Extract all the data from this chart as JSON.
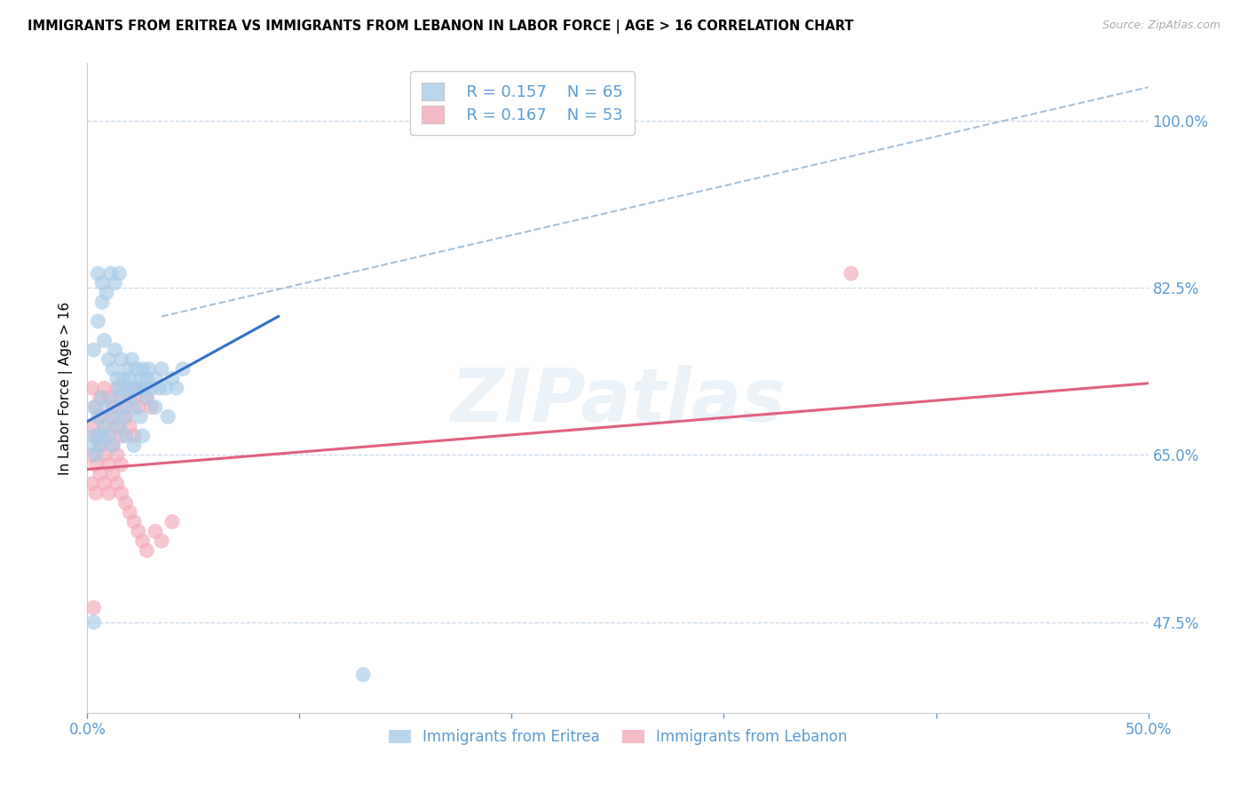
{
  "title": "IMMIGRANTS FROM ERITREA VS IMMIGRANTS FROM LEBANON IN LABOR FORCE | AGE > 16 CORRELATION CHART",
  "source": "Source: ZipAtlas.com",
  "ylabel": "In Labor Force | Age > 16",
  "ytick_labels": [
    "47.5%",
    "65.0%",
    "82.5%",
    "100.0%"
  ],
  "ytick_values": [
    0.475,
    0.65,
    0.825,
    1.0
  ],
  "xlim": [
    0.0,
    0.5
  ],
  "ylim": [
    0.38,
    1.06
  ],
  "watermark": "ZIPatlas",
  "legend_eritrea_R": "0.157",
  "legend_eritrea_N": "65",
  "legend_lebanon_R": "0.167",
  "legend_lebanon_N": "53",
  "eritrea_color": "#a8cce8",
  "lebanon_color": "#f4a8b8",
  "eritrea_line_color": "#3070c8",
  "lebanon_line_color": "#e06080",
  "dashed_line_color": "#a8c0d8",
  "eritrea_scatter_x": [
    0.003,
    0.005,
    0.007,
    0.008,
    0.01,
    0.012,
    0.013,
    0.014,
    0.015,
    0.016,
    0.017,
    0.018,
    0.019,
    0.02,
    0.021,
    0.022,
    0.023,
    0.024,
    0.025,
    0.026,
    0.027,
    0.028,
    0.029,
    0.03,
    0.032,
    0.034,
    0.035,
    0.037,
    0.04,
    0.042,
    0.045,
    0.005,
    0.007,
    0.009,
    0.011,
    0.013,
    0.015,
    0.003,
    0.005,
    0.007,
    0.009,
    0.012,
    0.014,
    0.016,
    0.018,
    0.02,
    0.022,
    0.025,
    0.028,
    0.032,
    0.038,
    0.003,
    0.006,
    0.008,
    0.01,
    0.012,
    0.015,
    0.018,
    0.022,
    0.026,
    0.003,
    0.004,
    0.006,
    0.003,
    0.13
  ],
  "eritrea_scatter_y": [
    0.76,
    0.79,
    0.81,
    0.77,
    0.75,
    0.74,
    0.76,
    0.73,
    0.72,
    0.75,
    0.73,
    0.72,
    0.74,
    0.73,
    0.75,
    0.72,
    0.74,
    0.72,
    0.73,
    0.74,
    0.72,
    0.73,
    0.74,
    0.72,
    0.73,
    0.72,
    0.74,
    0.72,
    0.73,
    0.72,
    0.74,
    0.84,
    0.83,
    0.82,
    0.84,
    0.83,
    0.84,
    0.7,
    0.69,
    0.71,
    0.7,
    0.69,
    0.71,
    0.7,
    0.69,
    0.71,
    0.7,
    0.69,
    0.71,
    0.7,
    0.69,
    0.67,
    0.66,
    0.68,
    0.67,
    0.66,
    0.68,
    0.67,
    0.66,
    0.67,
    0.66,
    0.65,
    0.67,
    0.475,
    0.42
  ],
  "lebanon_scatter_x": [
    0.002,
    0.004,
    0.006,
    0.008,
    0.01,
    0.012,
    0.014,
    0.016,
    0.018,
    0.02,
    0.022,
    0.024,
    0.026,
    0.028,
    0.03,
    0.002,
    0.004,
    0.006,
    0.008,
    0.01,
    0.012,
    0.014,
    0.016,
    0.018,
    0.02,
    0.022,
    0.002,
    0.004,
    0.006,
    0.008,
    0.01,
    0.012,
    0.014,
    0.016,
    0.002,
    0.004,
    0.006,
    0.008,
    0.01,
    0.012,
    0.014,
    0.016,
    0.018,
    0.02,
    0.022,
    0.024,
    0.026,
    0.028,
    0.032,
    0.035,
    0.04,
    0.003,
    0.36
  ],
  "lebanon_scatter_y": [
    0.72,
    0.7,
    0.71,
    0.72,
    0.71,
    0.7,
    0.72,
    0.71,
    0.7,
    0.72,
    0.71,
    0.7,
    0.72,
    0.71,
    0.7,
    0.68,
    0.67,
    0.69,
    0.68,
    0.67,
    0.69,
    0.68,
    0.67,
    0.69,
    0.68,
    0.67,
    0.65,
    0.64,
    0.66,
    0.65,
    0.64,
    0.66,
    0.65,
    0.64,
    0.62,
    0.61,
    0.63,
    0.62,
    0.61,
    0.63,
    0.62,
    0.61,
    0.6,
    0.59,
    0.58,
    0.57,
    0.56,
    0.55,
    0.57,
    0.56,
    0.58,
    0.49,
    0.84
  ],
  "eritrea_trendline_x": [
    0.0,
    0.09
  ],
  "eritrea_trendline_y": [
    0.685,
    0.795
  ],
  "lebanon_trendline_x": [
    0.0,
    0.5
  ],
  "lebanon_trendline_y": [
    0.635,
    0.725
  ],
  "dashed_line_x": [
    0.035,
    0.5
  ],
  "dashed_line_y": [
    0.795,
    1.035
  ],
  "title_fontsize": 11,
  "axis_label_color": "#5b9bd5",
  "tick_color": "#5b9bd5",
  "grid_color": "#c8d8e8",
  "background_color": "#ffffff"
}
